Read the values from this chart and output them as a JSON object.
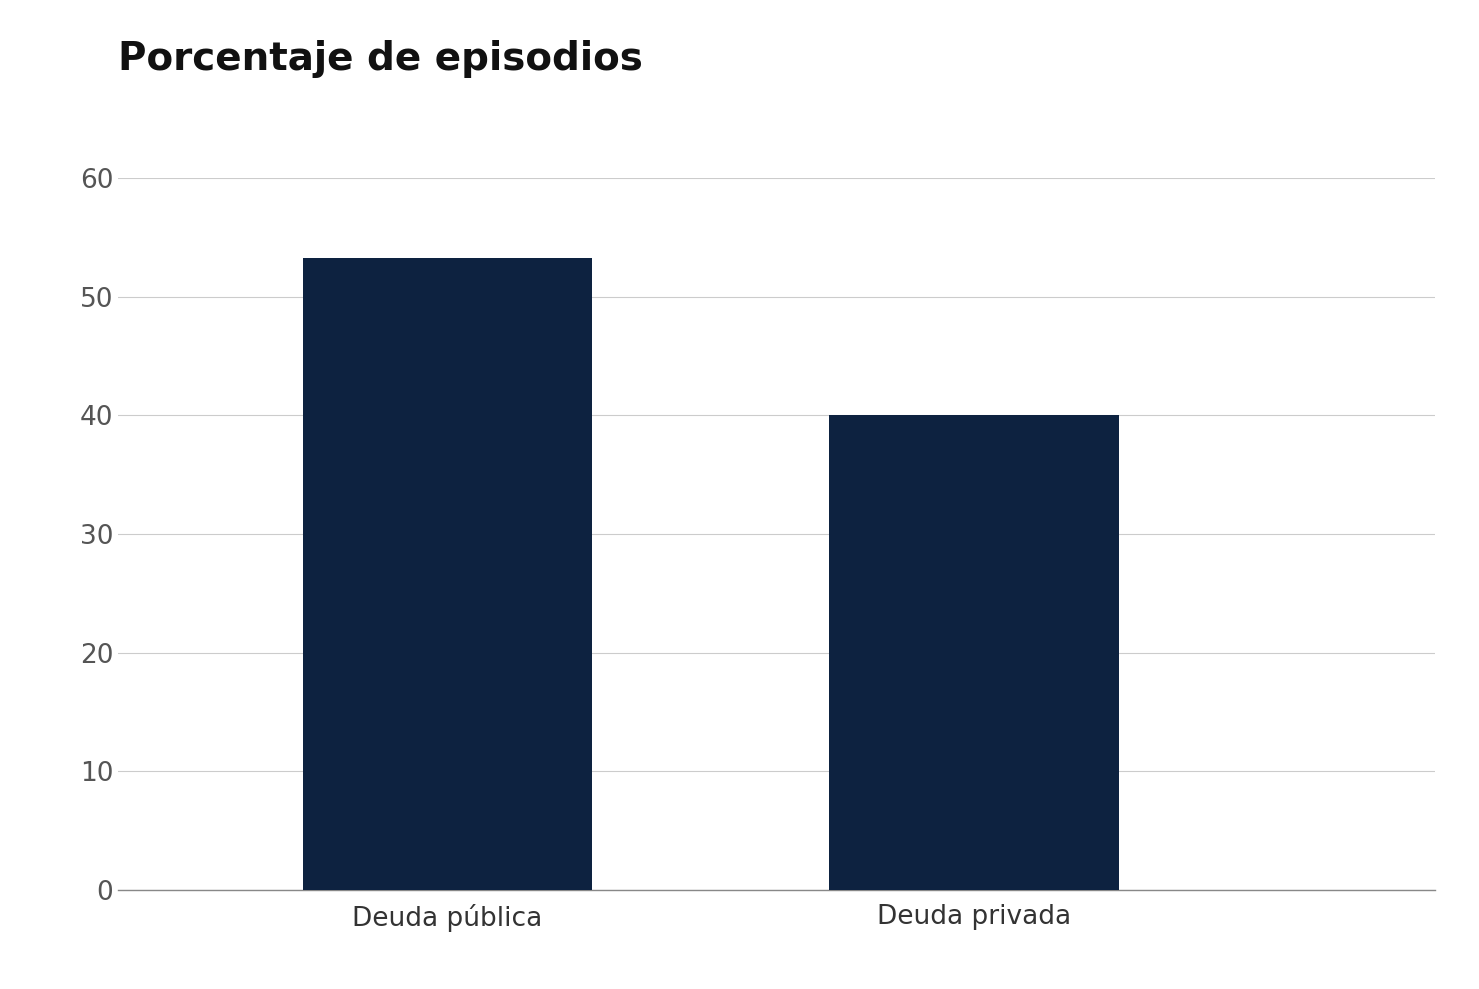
{
  "title": "Porcentaje de episodios",
  "categories": [
    "Deuda pública",
    "Deuda privada"
  ],
  "values": [
    53.3,
    40.0
  ],
  "bar_color": "#0d2240",
  "ylim": [
    0,
    60
  ],
  "yticks": [
    0,
    10,
    20,
    30,
    40,
    50,
    60
  ],
  "background_color": "#ffffff",
  "title_fontsize": 28,
  "tick_fontsize": 19,
  "xlabel_fontsize": 19,
  "title_fontweight": "bold",
  "grid_color": "#cccccc",
  "bar_width": 0.22
}
